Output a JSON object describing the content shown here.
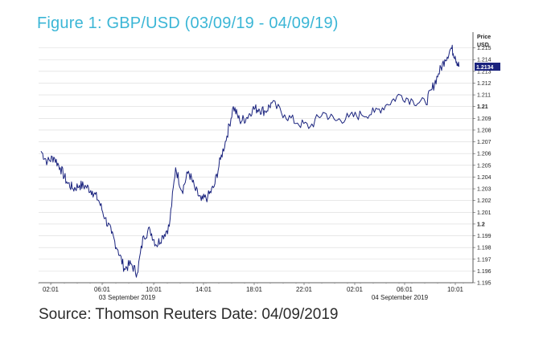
{
  "figure": {
    "title": "Figure 1: GBP/USD (03/09/19 - 04/09/19)",
    "source": "Source: Thomson Reuters Date: 04/09/2019"
  },
  "chart_data": {
    "type": "line",
    "y_axis_label": "Price",
    "y_axis_unit": "USD",
    "ylim": [
      1.195,
      1.216
    ],
    "y_ticks": [
      1.215,
      1.214,
      1.213,
      1.212,
      1.211,
      1.21,
      1.209,
      1.208,
      1.207,
      1.206,
      1.205,
      1.204,
      1.203,
      1.202,
      1.201,
      1.2,
      1.199,
      1.198,
      1.197,
      1.196,
      1.195
    ],
    "y_tick_labels": [
      "1.215",
      "1.214",
      "1.213",
      "1.212",
      "1.211",
      "1.21",
      "1.209",
      "1.208",
      "1.207",
      "1.206",
      "1.205",
      "1.204",
      "1.203",
      "1.202",
      "1.201",
      "1.2",
      "1.199",
      "1.198",
      "1.197",
      "1.196",
      "1.195"
    ],
    "y_bold_ticks": [
      "1.21",
      "1.2"
    ],
    "last_price": "1.2134",
    "x_tick_labels": [
      "02:01",
      "06:01",
      "10:01",
      "14:01",
      "18:01",
      "22:01",
      "02:01",
      "06:01",
      "10:01"
    ],
    "date_labels": [
      "03 September 2019",
      "04 September 2019"
    ],
    "series_color": "#1a237e",
    "gridlines": true,
    "series": [
      {
        "x_hours": [
          0,
          0.5,
          1,
          1.5,
          2,
          2.5,
          3,
          3.5,
          4,
          4.5,
          5,
          5.5,
          6,
          6.5,
          7,
          7.5,
          8,
          8.5,
          9,
          9.5,
          10,
          10.5,
          11,
          11.5,
          12,
          12.5,
          13,
          13.5,
          14,
          14.5,
          15,
          15.5,
          16,
          16.5,
          17,
          17.5,
          18,
          19,
          20,
          21,
          22,
          23,
          24,
          25,
          26,
          27,
          28,
          29,
          30,
          30.5,
          31,
          31.5,
          32,
          32.3,
          32.6
        ],
        "values": [
          1.2062,
          1.2053,
          1.2057,
          1.2048,
          1.2036,
          1.203,
          1.2033,
          1.2032,
          1.2028,
          1.202,
          1.2005,
          1.1992,
          1.1978,
          1.1962,
          1.1966,
          1.1958,
          1.199,
          1.1995,
          1.1982,
          1.199,
          1.1998,
          1.2048,
          1.2028,
          1.2045,
          1.203,
          1.202,
          1.2023,
          1.2032,
          1.2055,
          1.2075,
          1.21,
          1.2088,
          1.209,
          1.2098,
          1.2098,
          1.2096,
          1.2103,
          1.2093,
          1.2086,
          1.2083,
          1.2095,
          1.2088,
          1.2091,
          1.2093,
          1.2095,
          1.2102,
          1.211,
          1.2105,
          1.2103,
          1.2115,
          1.2128,
          1.214,
          1.215,
          1.2143,
          1.2134
        ]
      }
    ]
  }
}
